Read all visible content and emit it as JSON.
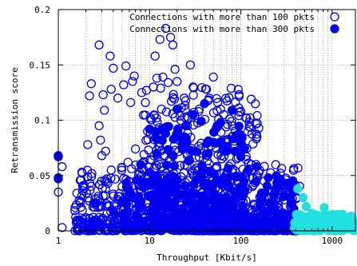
{
  "chart_data": {
    "type": "scatter",
    "xlabel": "Throughput [Kbit/s]",
    "ylabel": "Retransmission score",
    "xscale": "log",
    "xlim": [
      1,
      1800
    ],
    "ylim": [
      0,
      0.2
    ],
    "xticks": [
      {
        "value": 1,
        "label": "1"
      },
      {
        "value": 10,
        "label": "10"
      },
      {
        "value": 100,
        "label": "100"
      },
      {
        "value": 1000,
        "label": "1000"
      }
    ],
    "yticks": [
      {
        "value": 0,
        "label": "0"
      },
      {
        "value": 0.05,
        "label": "0.05"
      },
      {
        "value": 0.1,
        "label": "0.1"
      },
      {
        "value": 0.15,
        "label": "0.15"
      },
      {
        "value": 0.2,
        "label": "0.2"
      }
    ],
    "grid": true,
    "legend_position": "top-right",
    "series": [
      {
        "name": "Connections with more than 100 pkts",
        "marker": "open-circle",
        "color": "#0000ee",
        "points": [
          [
            1.0,
            0.067
          ],
          [
            1.0,
            0.048
          ],
          [
            1.0,
            0.035
          ],
          [
            1.1,
            0.058
          ],
          [
            1.1,
            0.003
          ],
          [
            1.6,
            0.034
          ],
          [
            1.7,
            0.0
          ],
          [
            1.9,
            0.002
          ],
          [
            2.0,
            0.012
          ],
          [
            2.1,
            0.078
          ],
          [
            2.1,
            0.008
          ],
          [
            2.2,
            0.122
          ],
          [
            2.3,
            0.133
          ],
          [
            2.2,
            0.027
          ],
          [
            2.4,
            0.009
          ],
          [
            2.6,
            0.025
          ],
          [
            2.8,
            0.168
          ],
          [
            2.8,
            0.095
          ],
          [
            2.9,
            0.082
          ],
          [
            3.0,
            0.068
          ],
          [
            3.1,
            0.123
          ],
          [
            3.2,
            0.109
          ],
          [
            3.3,
            0.072
          ],
          [
            3.4,
            0.047
          ],
          [
            3.3,
            0.038
          ],
          [
            3.2,
            0.003
          ],
          [
            3.5,
            0.022
          ],
          [
            3.7,
            0.158
          ],
          [
            3.8,
            0.128
          ],
          [
            3.8,
            0.055
          ],
          [
            4.0,
            0.147
          ],
          [
            4.2,
            0.009
          ],
          [
            4.5,
            0.12
          ],
          [
            4.7,
            0.031
          ],
          [
            5.0,
            0.04
          ],
          [
            5.2,
            0.132
          ],
          [
            5.5,
            0.149
          ],
          [
            5.8,
            0.062
          ],
          [
            6.0,
            0.028
          ],
          [
            6.2,
            0.116
          ],
          [
            6.5,
            0.135
          ],
          [
            6.8,
            0.14
          ],
          [
            7.0,
            0.074
          ],
          [
            7.5,
            0.047
          ],
          [
            8.0,
            0.021
          ],
          [
            8.2,
            0.125
          ],
          [
            8.5,
            0.012
          ],
          [
            9.0,
            0.116
          ],
          [
            9.5,
            0.09
          ],
          [
            10.0,
            0.031
          ],
          [
            11.0,
            0.13
          ],
          [
            11.5,
            0.158
          ],
          [
            12.0,
            0.138
          ],
          [
            13.0,
            0.173
          ],
          [
            13.5,
            0.11
          ],
          [
            14.0,
            0.139
          ],
          [
            15.0,
            0.183
          ],
          [
            16.0,
            0.134
          ],
          [
            17.0,
            0.175
          ],
          [
            18.0,
            0.168
          ],
          [
            19.0,
            0.146
          ],
          [
            20.0,
            0.135
          ],
          [
            22.0,
            0.1
          ],
          [
            24.0,
            0.12
          ],
          [
            26.0,
            0.095
          ],
          [
            28.0,
            0.15
          ],
          [
            30.0,
            0.13
          ],
          [
            32.0,
            0.066
          ],
          [
            35.0,
            0.11
          ],
          [
            38.0,
            0.07
          ],
          [
            42.0,
            0.128
          ],
          [
            45.0,
            0.12
          ],
          [
            50.0,
            0.139
          ],
          [
            55.0,
            0.095
          ],
          [
            60.0,
            0.11
          ],
          [
            65.0,
            0.105
          ],
          [
            70.0,
            0.08
          ],
          [
            80.0,
            0.085
          ],
          [
            90.0,
            0.065
          ],
          [
            100.0,
            0.108
          ],
          [
            110.0,
            0.075
          ],
          [
            130.0,
            0.06
          ],
          [
            150.0,
            0.05
          ],
          [
            180.0,
            0.045
          ],
          [
            220.0,
            0.035
          ],
          [
            260.0,
            0.03
          ],
          [
            300.0,
            0.028
          ],
          [
            350.0,
            0.022
          ],
          [
            400.0,
            0.015
          ]
        ],
        "cloud": [
          {
            "x_min": 1.5,
            "x_max": 450,
            "y_max": 0.06,
            "count": 520
          },
          {
            "x_min": 8,
            "x_max": 160,
            "y_max": 0.13,
            "count": 380
          },
          {
            "x_min": 1.5,
            "x_max": 450,
            "y_max": 0.012,
            "count": 240
          }
        ]
      },
      {
        "name": "Connections with more than 300 pkts",
        "marker": "filled-circle",
        "color": "#0000ee",
        "points": [
          [
            1.0,
            0.068
          ],
          [
            1.0,
            0.047
          ],
          [
            2.5,
            0.025
          ],
          [
            4.0,
            0.018
          ],
          [
            6.0,
            0.03
          ],
          [
            8.0,
            0.06
          ],
          [
            10.0,
            0.092
          ],
          [
            12.0,
            0.07
          ],
          [
            15.0,
            0.088
          ],
          [
            20.0,
            0.11
          ],
          [
            25.0,
            0.095
          ],
          [
            30.0,
            0.105
          ],
          [
            40.0,
            0.115
          ],
          [
            50.0,
            0.08
          ],
          [
            60.0,
            0.098
          ],
          [
            70.0,
            0.072
          ],
          [
            80.0,
            0.109
          ],
          [
            100.0,
            0.067
          ],
          [
            120.0,
            0.055
          ],
          [
            150.0,
            0.058
          ],
          [
            200.0,
            0.048
          ],
          [
            250.0,
            0.04
          ],
          [
            300.0,
            0.032
          ],
          [
            380.0,
            0.02
          ],
          [
            450.0,
            0.012
          ]
        ],
        "cloud": [
          {
            "x_min": 5,
            "x_max": 450,
            "y_max": 0.05,
            "count": 260
          },
          {
            "x_min": 10,
            "x_max": 120,
            "y_max": 0.1,
            "count": 120
          }
        ]
      },
      {
        "name": "",
        "marker": "filled-circle",
        "color": "#22e0e0",
        "points": [
          [
            420,
            0.038
          ],
          [
            480,
            0.03
          ],
          [
            520,
            0.022
          ],
          [
            600,
            0.016
          ],
          [
            700,
            0.012
          ],
          [
            820,
            0.021
          ],
          [
            900,
            0.006
          ],
          [
            1000,
            0.009
          ],
          [
            1100,
            0.004
          ],
          [
            1300,
            0.003
          ],
          [
            1500,
            0.002
          ],
          [
            1700,
            0.003
          ]
        ],
        "cloud": [
          {
            "x_min": 380,
            "x_max": 1800,
            "y_max": 0.015,
            "count": 160
          }
        ]
      }
    ]
  }
}
